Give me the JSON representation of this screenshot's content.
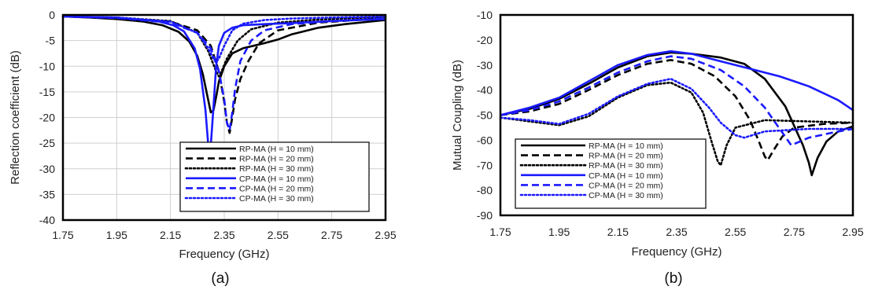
{
  "chart_data": [
    {
      "type": "line",
      "caption": "(a)",
      "xlabel": "Frequency (GHz)",
      "ylabel": "Reflection coefficient (dB)",
      "xlim": [
        1.75,
        2.95
      ],
      "ylim": [
        -40,
        0
      ],
      "xticks": [
        1.75,
        1.95,
        2.15,
        2.35,
        2.55,
        2.75,
        2.95
      ],
      "xtick_labels": [
        "1.75",
        "1.95",
        "2.15",
        "2.35",
        "2.55",
        "2.75",
        "2.95"
      ],
      "yticks": [
        0,
        -5,
        -10,
        -15,
        -20,
        -25,
        -30,
        -35,
        -40
      ],
      "ytick_labels": [
        "0",
        "-5",
        "-10",
        "-15",
        "-20",
        "-25",
        "-30",
        "-35",
        "-40"
      ],
      "grid": true,
      "legend_position": "bottom-right",
      "series": [
        {
          "name": "RP-MA (H = 10 mm)",
          "color": "#000000",
          "style": "solid",
          "x": [
            1.75,
            1.85,
            1.95,
            2.05,
            2.12,
            2.18,
            2.22,
            2.25,
            2.27,
            2.29,
            2.3,
            2.31,
            2.32,
            2.33,
            2.35,
            2.38,
            2.42,
            2.46,
            2.5,
            2.55,
            2.6,
            2.7,
            2.8,
            2.95
          ],
          "y": [
            -0.3,
            -0.5,
            -0.8,
            -1.3,
            -2.0,
            -3.3,
            -5.2,
            -8.0,
            -11.5,
            -16.5,
            -19.0,
            -18.6,
            -16.0,
            -13.0,
            -10.0,
            -7.5,
            -6.5,
            -6.0,
            -5.5,
            -4.8,
            -3.8,
            -2.5,
            -1.8,
            -1.0
          ]
        },
        {
          "name": "RP-MA (H = 20 mm)",
          "color": "#000000",
          "style": "dashed",
          "x": [
            1.75,
            1.95,
            2.15,
            2.25,
            2.3,
            2.33,
            2.35,
            2.36,
            2.37,
            2.38,
            2.39,
            2.41,
            2.44,
            2.48,
            2.55,
            2.7,
            2.95
          ],
          "y": [
            -0.3,
            -0.6,
            -1.3,
            -3.0,
            -6.0,
            -11.0,
            -17.0,
            -21.0,
            -23.0,
            -20.0,
            -16.5,
            -12.5,
            -9.0,
            -5.5,
            -3.0,
            -1.5,
            -0.6
          ]
        },
        {
          "name": "RP-MA (H = 30 mm)",
          "color": "#000000",
          "style": "dotted",
          "x": [
            1.75,
            1.95,
            2.15,
            2.25,
            2.29,
            2.32,
            2.33,
            2.34,
            2.36,
            2.4,
            2.45,
            2.55,
            2.7,
            2.95
          ],
          "y": [
            -0.3,
            -0.5,
            -1.2,
            -3.5,
            -7.0,
            -11.0,
            -12.0,
            -11.0,
            -8.5,
            -5.0,
            -2.8,
            -1.5,
            -0.9,
            -0.4
          ]
        },
        {
          "name": "CP-MA (H = 10 mm)",
          "color": "#1a1aff",
          "style": "solid",
          "x": [
            1.75,
            1.95,
            2.1,
            2.16,
            2.2,
            2.24,
            2.26,
            2.28,
            2.29,
            2.3,
            2.31,
            2.32,
            2.33,
            2.35,
            2.38,
            2.42,
            2.5,
            2.6,
            2.75,
            2.95
          ],
          "y": [
            -0.3,
            -0.5,
            -1.2,
            -2.0,
            -3.2,
            -6.5,
            -10.5,
            -18.5,
            -25.0,
            -25.5,
            -18.0,
            -10.0,
            -6.0,
            -3.5,
            -2.5,
            -2.0,
            -1.8,
            -1.6,
            -1.2,
            -0.8
          ]
        },
        {
          "name": "CP-MA (H = 20 mm)",
          "color": "#1a1aff",
          "style": "dashed",
          "x": [
            1.75,
            1.95,
            2.15,
            2.25,
            2.3,
            2.33,
            2.35,
            2.36,
            2.37,
            2.38,
            2.39,
            2.41,
            2.45,
            2.5,
            2.6,
            2.75,
            2.95
          ],
          "y": [
            -0.3,
            -0.6,
            -1.5,
            -3.5,
            -6.5,
            -11.0,
            -16.5,
            -21.0,
            -22.5,
            -19.0,
            -14.5,
            -9.0,
            -5.0,
            -3.0,
            -1.8,
            -1.2,
            -0.7
          ]
        },
        {
          "name": "CP-MA (H = 30 mm)",
          "color": "#1a1aff",
          "style": "dotted",
          "x": [
            1.75,
            1.95,
            2.15,
            2.25,
            2.29,
            2.31,
            2.32,
            2.33,
            2.35,
            2.38,
            2.42,
            2.5,
            2.6,
            2.75,
            2.95
          ],
          "y": [
            -0.3,
            -0.5,
            -1.3,
            -3.5,
            -6.5,
            -8.5,
            -9.2,
            -8.5,
            -6.0,
            -3.0,
            -1.7,
            -1.0,
            -0.7,
            -0.5,
            -0.3
          ]
        }
      ]
    },
    {
      "type": "line",
      "caption": "(b)",
      "xlabel": "Frequency (GHz)",
      "ylabel": "Mutual Coupling (dB)",
      "xlim": [
        1.75,
        2.95
      ],
      "ylim": [
        -90,
        -10
      ],
      "xticks": [
        1.75,
        1.95,
        2.15,
        2.35,
        2.55,
        2.75,
        2.95
      ],
      "xtick_labels": [
        "1.75",
        "1.95",
        "2.15",
        "2.35",
        "2.55",
        "2.75",
        "2.95"
      ],
      "yticks": [
        -10,
        -20,
        -30,
        -40,
        -50,
        -60,
        -70,
        -80,
        -90
      ],
      "ytick_labels": [
        "-10",
        "-20",
        "-30",
        "-40",
        "-50",
        "-60",
        "-70",
        "-80",
        "-90"
      ],
      "grid": false,
      "legend_position": "bottom-left",
      "series": [
        {
          "name": "RP-MA (H = 10 mm)",
          "color": "#000000",
          "style": "solid",
          "x": [
            1.75,
            1.85,
            1.95,
            2.05,
            2.15,
            2.25,
            2.33,
            2.4,
            2.5,
            2.58,
            2.65,
            2.72,
            2.78,
            2.8,
            2.81,
            2.83,
            2.86,
            2.9,
            2.95
          ],
          "y": [
            -50,
            -47.5,
            -43.5,
            -37.5,
            -31.0,
            -26.5,
            -25.0,
            -25.5,
            -27.0,
            -29.5,
            -35.5,
            -46.5,
            -62.0,
            -69.0,
            -74.0,
            -67.0,
            -60.5,
            -56.5,
            -54.5
          ]
        },
        {
          "name": "RP-MA (H = 20 mm)",
          "color": "#000000",
          "style": "dashed",
          "x": [
            1.75,
            1.85,
            1.95,
            2.05,
            2.15,
            2.25,
            2.33,
            2.4,
            2.48,
            2.55,
            2.6,
            2.63,
            2.65,
            2.66,
            2.68,
            2.71,
            2.75,
            2.85,
            2.95
          ],
          "y": [
            -50,
            -48.5,
            -45.5,
            -40.0,
            -34.0,
            -29.5,
            -28.0,
            -29.5,
            -34.5,
            -42.5,
            -52.0,
            -60.5,
            -66.5,
            -68.0,
            -64.0,
            -58.5,
            -55.0,
            -53.5,
            -53.0
          ]
        },
        {
          "name": "RP-MA (H = 30 mm)",
          "color": "#000000",
          "style": "dotted",
          "x": [
            1.75,
            1.85,
            1.95,
            2.05,
            2.15,
            2.25,
            2.33,
            2.4,
            2.44,
            2.47,
            2.49,
            2.5,
            2.52,
            2.55,
            2.65,
            2.8,
            2.95
          ],
          "y": [
            -51,
            -52.5,
            -54.0,
            -50.5,
            -43.0,
            -38.0,
            -37.0,
            -41.0,
            -49.0,
            -61.0,
            -68.5,
            -70.0,
            -62.0,
            -55.0,
            -52.0,
            -52.5,
            -53.0
          ]
        },
        {
          "name": "CP-MA (H = 10 mm)",
          "color": "#1a1aff",
          "style": "solid",
          "x": [
            1.75,
            1.85,
            1.95,
            2.05,
            2.15,
            2.25,
            2.33,
            2.4,
            2.5,
            2.6,
            2.7,
            2.8,
            2.9,
            2.95
          ],
          "y": [
            -50,
            -47.0,
            -43.0,
            -36.5,
            -30.0,
            -26.0,
            -24.5,
            -25.5,
            -28.5,
            -31.5,
            -34.5,
            -38.5,
            -44.0,
            -48.0
          ]
        },
        {
          "name": "CP-MA (H = 20 mm)",
          "color": "#1a1aff",
          "style": "dashed",
          "x": [
            1.75,
            1.85,
            1.95,
            2.05,
            2.15,
            2.25,
            2.33,
            2.4,
            2.5,
            2.58,
            2.65,
            2.71,
            2.74,
            2.76,
            2.8,
            2.88,
            2.95
          ],
          "y": [
            -50,
            -48.0,
            -44.5,
            -39.0,
            -33.0,
            -28.5,
            -26.5,
            -27.5,
            -32.0,
            -38.5,
            -47.0,
            -57.0,
            -62.0,
            -61.0,
            -59.0,
            -57.0,
            -55.5
          ]
        },
        {
          "name": "CP-MA (H = 30 mm)",
          "color": "#1a1aff",
          "style": "dotted",
          "x": [
            1.75,
            1.85,
            1.95,
            2.05,
            2.15,
            2.25,
            2.33,
            2.4,
            2.46,
            2.5,
            2.55,
            2.58,
            2.65,
            2.8,
            2.95
          ],
          "y": [
            -51,
            -52.0,
            -53.5,
            -49.5,
            -42.5,
            -37.5,
            -35.5,
            -39.5,
            -47.0,
            -53.0,
            -58.0,
            -59.0,
            -56.5,
            -55.5,
            -55.5
          ]
        }
      ]
    }
  ]
}
